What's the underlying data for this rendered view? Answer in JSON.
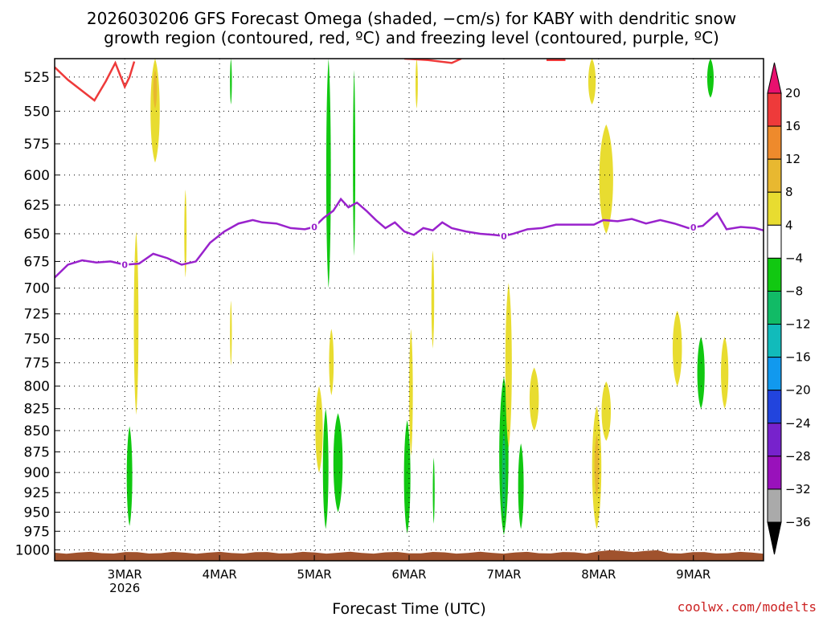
{
  "title": {
    "line1": "2026030206 GFS Forecast Omega (shaded, −cm/s) for KABY with dendritic snow",
    "line2": "growth region (contoured, red, ºC) and freezing level (contoured, purple, ºC)"
  },
  "credit": "coolwx.com/modelts",
  "chart_data": {
    "type": "heatmap",
    "xlabel": "Forecast Time (UTC)",
    "ylabel": "",
    "x_ticks": [
      {
        "t": 0,
        "label": "3MAR",
        "sub": "2026"
      },
      {
        "t": 1,
        "label": "4MAR",
        "sub": ""
      },
      {
        "t": 2,
        "label": "5MAR",
        "sub": ""
      },
      {
        "t": 3,
        "label": "6MAR",
        "sub": ""
      },
      {
        "t": 4,
        "label": "7MAR",
        "sub": ""
      },
      {
        "t": 5,
        "label": "8MAR",
        "sub": ""
      },
      {
        "t": 6,
        "label": "9MAR",
        "sub": ""
      }
    ],
    "xlim": [
      -0.74,
      6.74
    ],
    "y_levels": [
      525,
      550,
      575,
      600,
      625,
      650,
      675,
      700,
      725,
      750,
      775,
      800,
      825,
      850,
      875,
      900,
      925,
      950,
      975,
      1000
    ],
    "ylim": [
      512,
      1015
    ],
    "y_scale": "log-pressure, inverted",
    "grid": true,
    "colorbar": {
      "ticks": [
        "20",
        "16",
        "12",
        "8",
        "4",
        "−4",
        "−8",
        "−12",
        "−16",
        "−20",
        "−24",
        "−28",
        "−32",
        "−36"
      ],
      "colors": [
        "#e8106e",
        "#ee3a3a",
        "#ee8a2c",
        "#e8b830",
        "#e8dc30",
        "#ffffff",
        "#11c811",
        "#11bb66",
        "#11bbbb",
        "#1199ee",
        "#2244dd",
        "#7722cc",
        "#9911bb",
        "#aaaaaa",
        "#000000"
      ]
    },
    "freezing_level": {
      "color": "#9922cc",
      "label": "0",
      "label_times": [
        0.0,
        2.0,
        4.0,
        6.0
      ],
      "points": [
        [
          -0.74,
          690
        ],
        [
          -0.6,
          678
        ],
        [
          -0.45,
          674
        ],
        [
          -0.3,
          676
        ],
        [
          -0.15,
          675
        ],
        [
          0.0,
          678
        ],
        [
          0.15,
          677
        ],
        [
          0.3,
          668
        ],
        [
          0.45,
          672
        ],
        [
          0.6,
          678
        ],
        [
          0.75,
          675
        ],
        [
          0.9,
          658
        ],
        [
          1.05,
          648
        ],
        [
          1.2,
          641
        ],
        [
          1.35,
          638
        ],
        [
          1.45,
          640
        ],
        [
          1.6,
          641
        ],
        [
          1.75,
          645
        ],
        [
          1.9,
          646
        ],
        [
          2.0,
          644
        ],
        [
          2.1,
          636
        ],
        [
          2.2,
          630
        ],
        [
          2.28,
          620
        ],
        [
          2.36,
          627
        ],
        [
          2.45,
          623
        ],
        [
          2.55,
          630
        ],
        [
          2.65,
          638
        ],
        [
          2.75,
          645
        ],
        [
          2.85,
          640
        ],
        [
          2.95,
          648
        ],
        [
          3.05,
          651
        ],
        [
          3.15,
          645
        ],
        [
          3.25,
          647
        ],
        [
          3.35,
          640
        ],
        [
          3.45,
          645
        ],
        [
          3.6,
          648
        ],
        [
          3.75,
          650
        ],
        [
          3.9,
          651
        ],
        [
          4.0,
          652
        ],
        [
          4.1,
          650
        ],
        [
          4.25,
          646
        ],
        [
          4.4,
          645
        ],
        [
          4.55,
          642
        ],
        [
          4.75,
          642
        ],
        [
          4.95,
          642
        ],
        [
          5.05,
          638
        ],
        [
          5.2,
          639
        ],
        [
          5.35,
          637
        ],
        [
          5.5,
          641
        ],
        [
          5.65,
          638
        ],
        [
          5.8,
          641
        ],
        [
          5.95,
          645
        ],
        [
          6.1,
          643
        ],
        [
          6.25,
          632
        ],
        [
          6.35,
          646
        ],
        [
          6.5,
          644
        ],
        [
          6.65,
          645
        ],
        [
          6.74,
          647
        ]
      ]
    },
    "dgz_contour": {
      "color": "#ee3a3a",
      "segments": [
        [
          [
            -0.74,
            518
          ],
          [
            -0.6,
            527
          ],
          [
            -0.45,
            535
          ],
          [
            -0.32,
            542
          ],
          [
            -0.2,
            528
          ],
          [
            -0.1,
            515
          ],
          [
            0.0,
            532
          ],
          [
            0.05,
            525
          ],
          [
            0.1,
            514
          ]
        ],
        [
          [
            2.95,
            512
          ],
          [
            3.2,
            513
          ],
          [
            3.45,
            515
          ],
          [
            3.55,
            512
          ]
        ],
        [
          [
            4.45,
            513
          ],
          [
            4.65,
            513
          ]
        ]
      ]
    },
    "omega_regions": [
      {
        "t": 0.05,
        "p_top": 845,
        "p_bot": 968,
        "width": 0.06,
        "value": -6
      },
      {
        "t": 0.12,
        "p_top": 648,
        "p_bot": 832,
        "width": 0.05,
        "value": 4
      },
      {
        "t": 0.32,
        "p_top": 512,
        "p_bot": 590,
        "width": 0.1,
        "value": 4
      },
      {
        "t": 0.32,
        "p_top": 520,
        "p_bot": 548,
        "width": 0.04,
        "value": 8
      },
      {
        "t": 0.64,
        "p_top": 612,
        "p_bot": 690,
        "width": 0.025,
        "value": 4
      },
      {
        "t": 1.12,
        "p_top": 712,
        "p_bot": 778,
        "width": 0.02,
        "value": 4
      },
      {
        "t": 1.12,
        "p_top": 512,
        "p_bot": 545,
        "width": 0.02,
        "value": -6
      },
      {
        "t": 2.05,
        "p_top": 800,
        "p_bot": 900,
        "width": 0.08,
        "value": 4
      },
      {
        "t": 2.12,
        "p_top": 825,
        "p_bot": 972,
        "width": 0.06,
        "value": -6
      },
      {
        "t": 2.25,
        "p_top": 830,
        "p_bot": 950,
        "width": 0.1,
        "value": -6
      },
      {
        "t": 2.15,
        "p_top": 512,
        "p_bot": 700,
        "width": 0.05,
        "value": -6
      },
      {
        "t": 2.18,
        "p_top": 740,
        "p_bot": 810,
        "width": 0.05,
        "value": 4
      },
      {
        "t": 2.42,
        "p_top": 520,
        "p_bot": 670,
        "width": 0.025,
        "value": -6
      },
      {
        "t": 2.98,
        "p_top": 838,
        "p_bot": 978,
        "width": 0.07,
        "value": -6
      },
      {
        "t": 3.02,
        "p_top": 740,
        "p_bot": 880,
        "width": 0.04,
        "value": 4
      },
      {
        "t": 3.08,
        "p_top": 512,
        "p_bot": 548,
        "width": 0.025,
        "value": 4
      },
      {
        "t": 3.25,
        "p_top": 665,
        "p_bot": 760,
        "width": 0.03,
        "value": 4
      },
      {
        "t": 3.26,
        "p_top": 882,
        "p_bot": 965,
        "width": 0.02,
        "value": -6
      },
      {
        "t": 4.0,
        "p_top": 790,
        "p_bot": 980,
        "width": 0.1,
        "value": -6
      },
      {
        "t": 4.0,
        "p_top": 850,
        "p_bot": 960,
        "width": 0.04,
        "value": -10
      },
      {
        "t": 4.05,
        "p_top": 695,
        "p_bot": 870,
        "width": 0.07,
        "value": 4
      },
      {
        "t": 4.18,
        "p_top": 865,
        "p_bot": 972,
        "width": 0.06,
        "value": -6
      },
      {
        "t": 4.32,
        "p_top": 780,
        "p_bot": 850,
        "width": 0.1,
        "value": 4
      },
      {
        "t": 4.93,
        "p_top": 512,
        "p_bot": 545,
        "width": 0.08,
        "value": 4
      },
      {
        "t": 5.08,
        "p_top": 560,
        "p_bot": 650,
        "width": 0.15,
        "value": 4
      },
      {
        "t": 4.98,
        "p_top": 822,
        "p_bot": 972,
        "width": 0.1,
        "value": 4
      },
      {
        "t": 4.98,
        "p_top": 855,
        "p_bot": 930,
        "width": 0.05,
        "value": 10
      },
      {
        "t": 5.08,
        "p_top": 795,
        "p_bot": 862,
        "width": 0.1,
        "value": 4
      },
      {
        "t": 5.83,
        "p_top": 722,
        "p_bot": 800,
        "width": 0.1,
        "value": 4
      },
      {
        "t": 6.08,
        "p_top": 748,
        "p_bot": 825,
        "width": 0.08,
        "value": -6
      },
      {
        "t": 6.33,
        "p_top": 748,
        "p_bot": 825,
        "width": 0.08,
        "value": 4
      },
      {
        "t": 6.18,
        "p_top": 512,
        "p_bot": 540,
        "width": 0.07,
        "value": -6
      }
    ]
  }
}
